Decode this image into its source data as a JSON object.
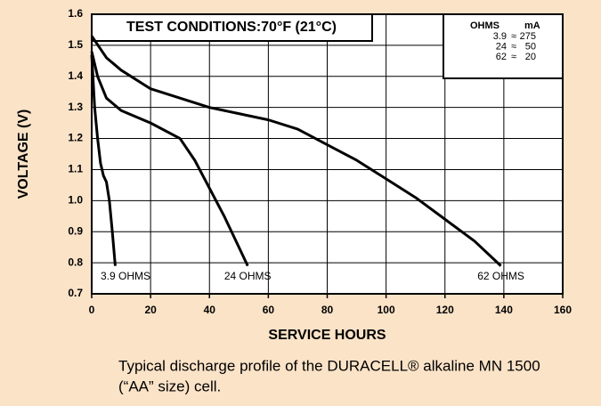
{
  "chart_data": {
    "type": "line",
    "title": "TEST CONDITIONS:70°F (21°C)",
    "xlabel": "SERVICE HOURS",
    "ylabel": "VOLTAGE (V)",
    "xlim": [
      0,
      160
    ],
    "ylim": [
      0.7,
      1.6
    ],
    "xticks": [
      0,
      20,
      40,
      60,
      80,
      100,
      120,
      140,
      160
    ],
    "yticks": [
      0.7,
      0.8,
      0.9,
      {
        "value": 1,
        "label": "1.0"
      },
      1.1,
      1.2,
      1.3,
      1.4,
      1.5,
      1.6
    ],
    "grid": true,
    "series": [
      {
        "name": "3.9 OHMS",
        "color": "#000000",
        "x": [
          0,
          1,
          2,
          3,
          4,
          5,
          6,
          7,
          8
        ],
        "values": [
          1.47,
          1.3,
          1.2,
          1.12,
          1.08,
          1.06,
          1.0,
          0.9,
          0.79
        ]
      },
      {
        "name": "24 OHMS",
        "color": "#000000",
        "x": [
          0,
          2,
          5,
          10,
          20,
          30,
          35,
          40,
          45,
          50,
          53
        ],
        "values": [
          1.48,
          1.4,
          1.33,
          1.29,
          1.25,
          1.2,
          1.13,
          1.04,
          0.95,
          0.85,
          0.79
        ]
      },
      {
        "name": "62 OHMS",
        "color": "#000000",
        "x": [
          0,
          5,
          10,
          20,
          30,
          40,
          50,
          60,
          70,
          80,
          90,
          100,
          110,
          120,
          130,
          139
        ],
        "values": [
          1.53,
          1.46,
          1.42,
          1.36,
          1.33,
          1.3,
          1.28,
          1.26,
          1.23,
          1.18,
          1.13,
          1.07,
          1.01,
          0.94,
          0.87,
          0.79
        ]
      }
    ],
    "legend_table": {
      "header": [
        "OHMS",
        "mA"
      ],
      "rows": [
        [
          "3.9",
          "≈",
          "275"
        ],
        [
          "24",
          "≈",
          "50"
        ],
        [
          "62",
          "≈",
          "20"
        ]
      ]
    },
    "caption": [
      "Typical discharge profile of the DURACELL® alkaline MN 1500",
      "(“AA” size) cell."
    ]
  }
}
